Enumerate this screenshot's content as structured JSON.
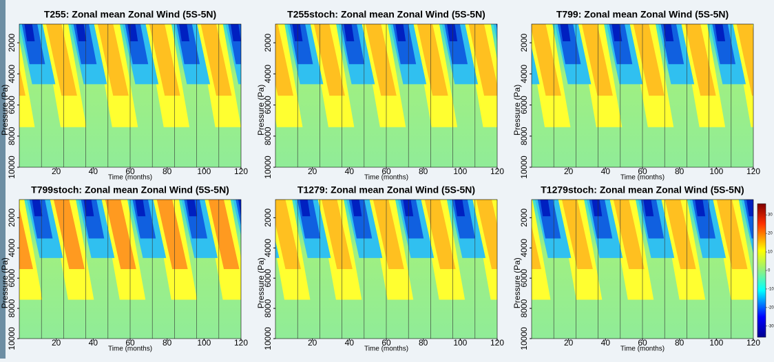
{
  "chart_data": [
    {
      "type": "contour",
      "title": "T255: Zonal mean Zonal Wind (5S-5N)",
      "xlabel": "Time (months)",
      "ylabel": "Pressure (Pa)",
      "xlim": [
        0,
        120
      ],
      "xticks": [
        20,
        40,
        60,
        80,
        100,
        120
      ],
      "ylim": [
        10000,
        800
      ],
      "yticks": [
        2000,
        4000,
        6000,
        8000,
        10000
      ],
      "vlines": [
        12,
        24,
        36,
        48,
        60,
        72,
        84,
        96,
        108
      ]
    },
    {
      "type": "contour",
      "title": "T255stoch: Zonal mean Zonal Wind (5S-5N)",
      "xlabel": "Time (months)",
      "ylabel": "Pressure (Pa)",
      "xlim": [
        0,
        120
      ],
      "xticks": [
        20,
        40,
        60,
        80,
        100,
        120
      ],
      "ylim": [
        10000,
        800
      ],
      "yticks": [
        2000,
        4000,
        6000,
        8000,
        10000
      ],
      "vlines": [
        12,
        24,
        36,
        48,
        60,
        72,
        84,
        96,
        108
      ]
    },
    {
      "type": "contour",
      "title": "T799: Zonal mean Zonal Wind (5S-5N)",
      "xlabel": "Time (months)",
      "ylabel": "Pressure (Pa)",
      "xlim": [
        0,
        120
      ],
      "xticks": [
        20,
        40,
        60,
        80,
        100,
        120
      ],
      "ylim": [
        10000,
        800
      ],
      "yticks": [
        2000,
        4000,
        6000,
        8000,
        10000
      ],
      "vlines": [
        12,
        24,
        36,
        48,
        60,
        72,
        84,
        96,
        108
      ]
    },
    {
      "type": "contour",
      "title": "T799stoch: Zonal mean Zonal Wind (5S-5N)",
      "xlabel": "Time (months)",
      "ylabel": "Pressure (Pa)",
      "xlim": [
        0,
        120
      ],
      "xticks": [
        20,
        40,
        60,
        80,
        100,
        120
      ],
      "ylim": [
        10000,
        800
      ],
      "yticks": [
        2000,
        4000,
        6000,
        8000,
        10000
      ],
      "vlines": [
        12,
        24,
        36,
        48,
        60,
        72,
        84,
        96,
        108
      ]
    },
    {
      "type": "contour",
      "title": "T1279: Zonal mean Zonal Wind (5S-5N)",
      "xlabel": "Time (months)",
      "ylabel": "Pressure (Pa)",
      "xlim": [
        0,
        120
      ],
      "xticks": [
        20,
        40,
        60,
        80,
        100,
        120
      ],
      "ylim": [
        10000,
        800
      ],
      "yticks": [
        2000,
        4000,
        6000,
        8000,
        10000
      ],
      "vlines": [
        12,
        24,
        36,
        48,
        60,
        72,
        84,
        96,
        108
      ]
    },
    {
      "type": "contour",
      "title": "T1279stoch: Zonal mean Zonal Wind (5S-5N)",
      "xlabel": "Time (months)",
      "ylabel": "Pressure (Pa)",
      "xlim": [
        0,
        120
      ],
      "xticks": [
        20,
        40,
        60,
        80,
        100,
        120
      ],
      "ylim": [
        10000,
        800
      ],
      "yticks": [
        2000,
        4000,
        6000,
        8000,
        10000
      ],
      "vlines": [
        12,
        24,
        36,
        48,
        60,
        72,
        84,
        96,
        108
      ],
      "clim": [
        -36,
        36
      ],
      "cticks": [
        -30,
        -20,
        -10,
        0,
        10,
        20,
        30
      ]
    }
  ]
}
